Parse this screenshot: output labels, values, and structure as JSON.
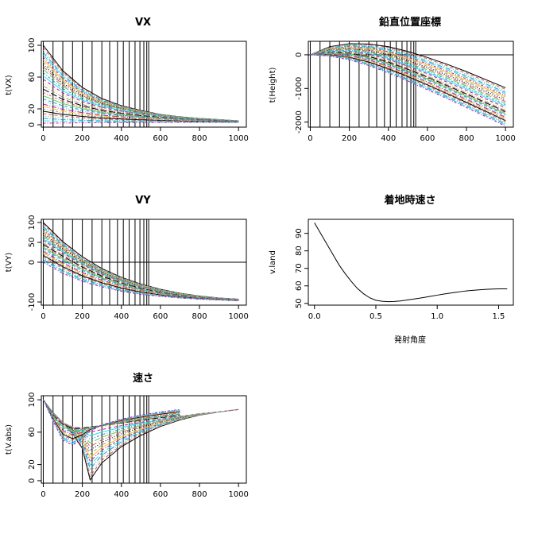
{
  "chart_data": [
    {
      "type": "line",
      "title": "VX",
      "xlabel": "",
      "ylabel": "t(VX)",
      "xlim": [
        -10,
        1040
      ],
      "ylim": [
        -3,
        105
      ],
      "xticks": [
        0,
        200,
        400,
        600,
        800,
        1000
      ],
      "yticks": [
        0,
        20,
        60,
        100
      ],
      "vlines": [
        0,
        50,
        100,
        150,
        200,
        250,
        300,
        340,
        380,
        410,
        440,
        470,
        495,
        515,
        530,
        540
      ],
      "hline": null,
      "series_count": 30,
      "series": [
        {
          "x": [
            0,
            100,
            200,
            300,
            400,
            500,
            600,
            700,
            800,
            900,
            1000
          ],
          "values": [
            100,
            68,
            47,
            33,
            24,
            18,
            13,
            10,
            8,
            6.5,
            5
          ]
        },
        {
          "x": [
            0,
            100,
            200,
            300,
            400,
            500,
            600,
            700,
            800,
            900,
            1000
          ],
          "values": [
            71,
            49,
            35,
            26,
            20,
            15,
            12,
            9,
            7.5,
            6,
            4.8
          ]
        },
        {
          "x": [
            0,
            100,
            200,
            300,
            400,
            500,
            600,
            700,
            800,
            900,
            1000
          ],
          "values": [
            31,
            23,
            18,
            14,
            11.5,
            9.5,
            8,
            6.5,
            5.5,
            4.7,
            4
          ]
        },
        {
          "x": [
            0,
            100,
            200,
            300,
            400,
            500,
            600,
            700,
            800,
            900,
            1000
          ],
          "values": [
            2,
            2.2,
            2.4,
            2.6,
            2.7,
            2.8,
            2.9,
            3,
            3,
            3,
            3
          ]
        }
      ]
    },
    {
      "type": "line",
      "title": "鉛直位置座標",
      "xlabel": "",
      "ylabel": "t(Height)",
      "xlim": [
        -10,
        1040
      ],
      "ylim": [
        -2150,
        400
      ],
      "xticks": [
        0,
        200,
        400,
        600,
        800,
        1000
      ],
      "yticks": [
        -2000,
        -1000,
        0
      ],
      "vlines": [
        0,
        50,
        100,
        150,
        200,
        250,
        300,
        340,
        380,
        410,
        440,
        470,
        495,
        515,
        530,
        540
      ],
      "hline": 0,
      "series_count": 30,
      "series": [
        {
          "x": [
            0,
            100,
            200,
            300,
            400,
            500,
            600,
            700,
            800,
            900,
            1000
          ],
          "values": [
            0,
            240,
            330,
            320,
            240,
            100,
            -80,
            -280,
            -500,
            -740,
            -980
          ]
        },
        {
          "x": [
            0,
            100,
            200,
            300,
            400,
            500,
            600,
            700,
            800,
            900,
            1000
          ],
          "values": [
            0,
            80,
            70,
            -20,
            -180,
            -390,
            -620,
            -870,
            -1120,
            -1380,
            -1640
          ]
        },
        {
          "x": [
            0,
            100,
            200,
            300,
            400,
            500,
            600,
            700,
            800,
            900,
            1000
          ],
          "values": [
            0,
            -40,
            -150,
            -320,
            -540,
            -780,
            -1040,
            -1300,
            -1570,
            -1840,
            -2120
          ]
        }
      ]
    },
    {
      "type": "line",
      "title": "VY",
      "xlabel": "",
      "ylabel": "t(VY)",
      "xlim": [
        -10,
        1040
      ],
      "ylim": [
        -108,
        108
      ],
      "xticks": [
        0,
        200,
        400,
        600,
        800,
        1000
      ],
      "yticks": [
        -100,
        0,
        50,
        100
      ],
      "vlines": [
        0,
        50,
        100,
        150,
        200,
        250,
        300,
        340,
        380,
        410,
        440,
        470,
        495,
        515,
        530,
        540
      ],
      "hline": 0,
      "series_count": 30,
      "series": [
        {
          "x": [
            0,
            100,
            200,
            300,
            400,
            500,
            600,
            700,
            800,
            900,
            1000
          ],
          "values": [
            100,
            52,
            14,
            -16,
            -38,
            -55,
            -68,
            -78,
            -85,
            -90,
            -93
          ]
        },
        {
          "x": [
            0,
            100,
            200,
            300,
            400,
            500,
            600,
            700,
            800,
            900,
            1000
          ],
          "values": [
            50,
            20,
            -8,
            -32,
            -50,
            -64,
            -75,
            -83,
            -88,
            -92,
            -95
          ]
        },
        {
          "x": [
            0,
            100,
            200,
            300,
            400,
            500,
            600,
            700,
            800,
            900,
            1000
          ],
          "values": [
            0,
            -28,
            -48,
            -62,
            -73,
            -81,
            -86,
            -90,
            -93,
            -95,
            -97
          ]
        }
      ]
    },
    {
      "type": "line",
      "title": "着地時速さ",
      "xlabel": "発射角度",
      "ylabel": "v.land",
      "xlim": [
        -0.05,
        1.62
      ],
      "ylim": [
        49,
        98
      ],
      "xticks": [
        0.0,
        0.5,
        1.0,
        1.5
      ],
      "yticks": [
        50,
        60,
        70,
        80,
        90
      ],
      "series": [
        {
          "x": [
            0,
            0.05,
            0.1,
            0.15,
            0.2,
            0.25,
            0.3,
            0.35,
            0.4,
            0.45,
            0.5,
            0.55,
            0.6,
            0.65,
            0.7,
            0.75,
            0.8,
            0.85,
            0.9,
            0.95,
            1.0,
            1.05,
            1.1,
            1.15,
            1.2,
            1.25,
            1.3,
            1.35,
            1.4,
            1.45,
            1.5,
            1.55,
            1.57
          ],
          "values": [
            96,
            90,
            84,
            78,
            72,
            67,
            62.5,
            58.5,
            55.5,
            53.2,
            51.8,
            51.2,
            51.0,
            51.1,
            51.4,
            51.9,
            52.4,
            52.9,
            53.5,
            54.1,
            54.7,
            55.3,
            55.8,
            56.3,
            56.8,
            57.2,
            57.5,
            57.8,
            58.0,
            58.2,
            58.3,
            58.3,
            58.3
          ]
        }
      ]
    },
    {
      "type": "line",
      "title": "速さ",
      "xlabel": "",
      "ylabel": "t(V.abs)",
      "xlim": [
        -10,
        1040
      ],
      "ylim": [
        -3,
        105
      ],
      "xticks": [
        0,
        200,
        400,
        600,
        800,
        1000
      ],
      "yticks": [
        0,
        20,
        60,
        100
      ],
      "vlines": [
        0,
        50,
        100,
        150,
        200,
        250,
        300,
        340,
        380,
        410,
        440,
        470,
        495,
        515,
        530,
        540
      ],
      "hline": null,
      "series_count": 30,
      "series": [
        {
          "x": [
            0,
            50,
            100,
            150,
            200,
            240,
            300,
            400,
            500,
            600,
            700,
            800,
            900,
            1000
          ],
          "values": [
            100,
            84,
            72,
            58,
            40,
            1,
            22,
            42,
            56,
            67,
            75,
            81,
            85,
            88
          ]
        },
        {
          "x": [
            0,
            50,
            100,
            150,
            200,
            240,
            300,
            400,
            500,
            600,
            700,
            800,
            900,
            1000
          ],
          "values": [
            100,
            82,
            72,
            67,
            66,
            67,
            68,
            71,
            74,
            77,
            80,
            83,
            85,
            88
          ]
        },
        {
          "x": [
            0,
            100,
            200,
            300,
            400,
            500,
            600,
            700,
            800,
            900,
            1000
          ],
          "values": [
            100,
            74,
            50,
            44,
            52,
            61,
            69,
            76,
            81,
            85,
            88
          ]
        }
      ]
    }
  ]
}
